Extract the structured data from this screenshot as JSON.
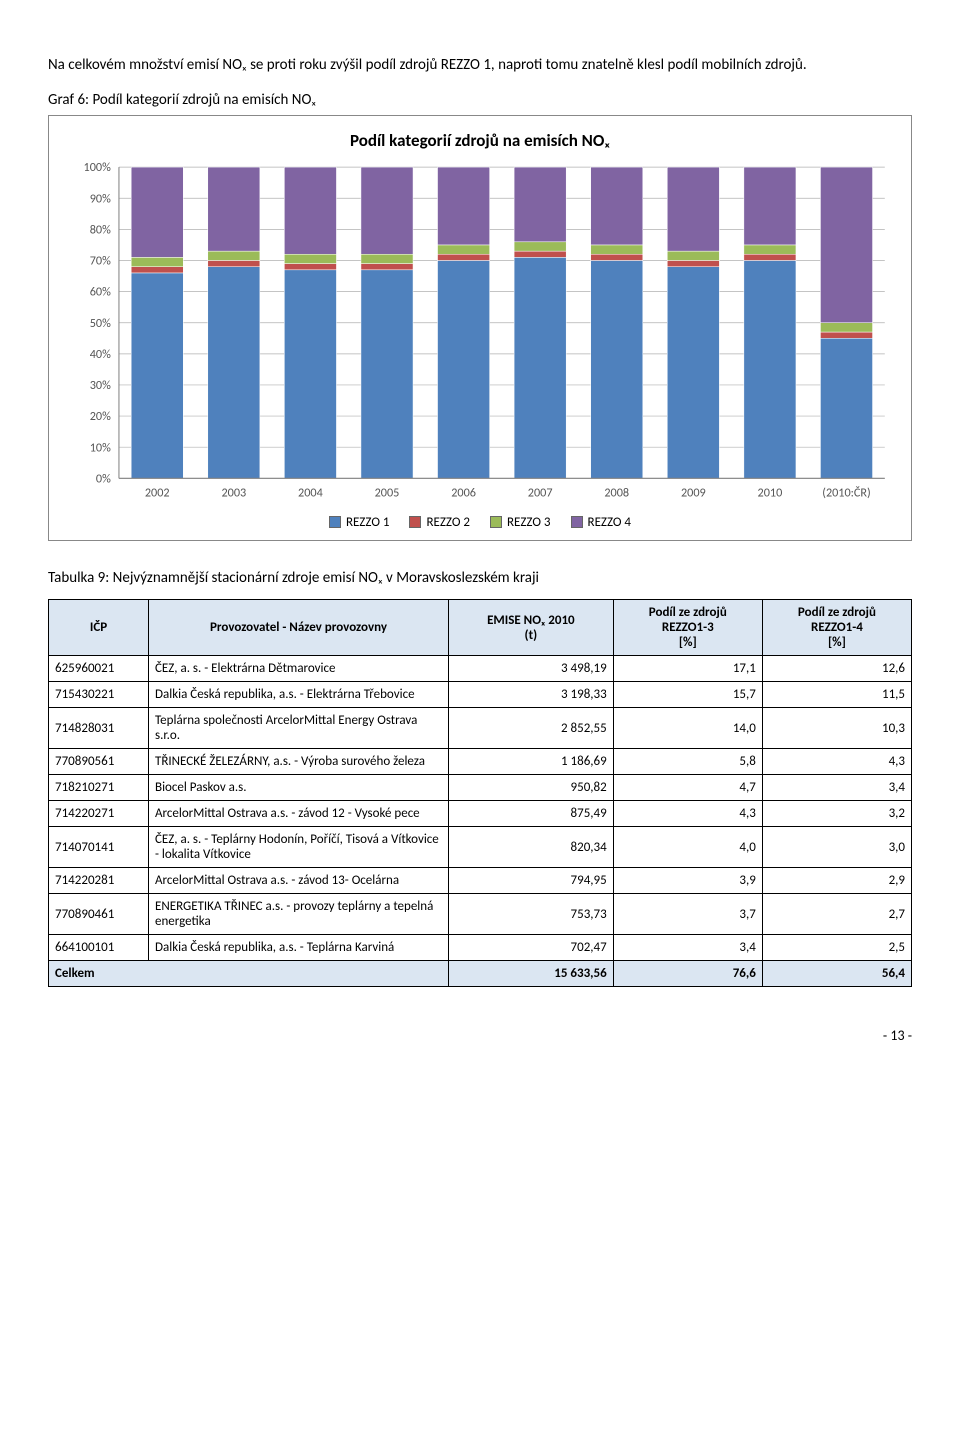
{
  "intro": "Na celkovém množství emisí NOₓ se proti roku zvýšil podíl zdrojů REZZO 1, naproti tomu znatelně klesl podíl mobilních zdrojů.",
  "chart_caption": "Graf 6: Podíl kategorií zdrojů na emisích NOₓ",
  "chart": {
    "title": "Podíl kategorií zdrojů na emisích NOₓ",
    "title_fontsize": 17,
    "background": "#ffffff",
    "grid_color": "#b0b0b0",
    "axis_color": "#808080",
    "ylim": [
      0,
      100
    ],
    "ytick_step": 10,
    "x_labels": [
      "2002",
      "2003",
      "2004",
      "2005",
      "2006",
      "2007",
      "2008",
      "2009",
      "2010",
      "(2010:ČR)"
    ],
    "series": [
      {
        "name": "REZZO 1",
        "color": "#4f81bd"
      },
      {
        "name": "REZZO 2",
        "color": "#c0504d"
      },
      {
        "name": "REZZO 3",
        "color": "#9bbb59"
      },
      {
        "name": "REZZO 4",
        "color": "#8064a2"
      }
    ],
    "data": [
      [
        66,
        2,
        3,
        29
      ],
      [
        68,
        2,
        3,
        27
      ],
      [
        67,
        2,
        3,
        28
      ],
      [
        67,
        2,
        3,
        28
      ],
      [
        70,
        2,
        3,
        25
      ],
      [
        71,
        2,
        3,
        24
      ],
      [
        70,
        2,
        3,
        25
      ],
      [
        68,
        2,
        3,
        27
      ],
      [
        70,
        2,
        3,
        25
      ],
      [
        45,
        2,
        3,
        50
      ]
    ],
    "label_fontsize": 12
  },
  "table_caption": "Tabulka 9: Nejvýznamnější stacionární zdroje emisí NOₓ v Moravskoslezském kraji",
  "table": {
    "headers": [
      "IČP",
      "Provozovatel - Název provozovny",
      "EMISE NOₓ 2010\n(t)",
      "Podíl ze zdrojů\nREZZO1-3\n[%]",
      "Podíl ze zdrojů\nREZZO1-4\n[%]"
    ],
    "rows": [
      [
        "625960021",
        "ČEZ, a. s. - Elektrárna Dětmarovice",
        "3 498,19",
        "17,1",
        "12,6"
      ],
      [
        "715430221",
        "Dalkia Česká republika, a.s. - Elektrárna Třebovice",
        "3 198,33",
        "15,7",
        "11,5"
      ],
      [
        "714828031",
        "Teplárna společnosti ArcelorMittal Energy Ostrava s.r.o.",
        "2 852,55",
        "14,0",
        "10,3"
      ],
      [
        "770890561",
        "TŘINECKÉ ŽELEZÁRNY, a.s. - Výroba surového železa",
        "1 186,69",
        "5,8",
        "4,3"
      ],
      [
        "718210271",
        "Biocel Paskov a.s.",
        "950,82",
        "4,7",
        "3,4"
      ],
      [
        "714220271",
        "ArcelorMittal Ostrava a.s. - závod 12 - Vysoké pece",
        "875,49",
        "4,3",
        "3,2"
      ],
      [
        "714070141",
        "ČEZ, a. s. - Teplárny Hodonín, Poříčí, Tisová a Vítkovice - lokalita Vítkovice",
        "820,34",
        "4,0",
        "3,0"
      ],
      [
        "714220281",
        "ArcelorMittal Ostrava a.s. - závod 13- Ocelárna",
        "794,95",
        "3,9",
        "2,9"
      ],
      [
        "770890461",
        "ENERGETIKA TŘINEC a.s. - provozy teplárny a tepelná energetika",
        "753,73",
        "3,7",
        "2,7"
      ],
      [
        "664100101",
        "Dalkia Česká republika, a.s. - Teplárna Karviná",
        "702,47",
        "3,4",
        "2,5"
      ]
    ],
    "total_row": [
      "Celkem",
      "",
      "15 633,56",
      "76,6",
      "56,4"
    ]
  },
  "page_number": "- 13 -"
}
